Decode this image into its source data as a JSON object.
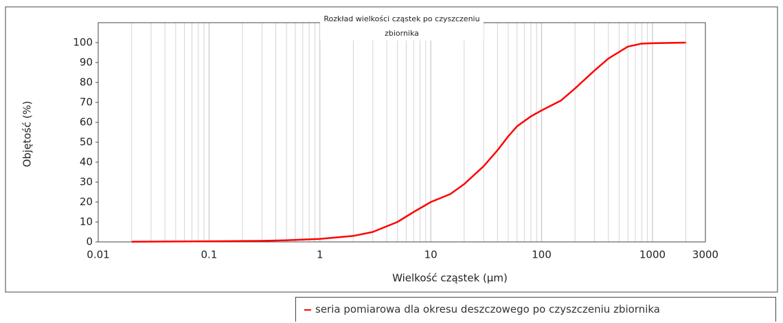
{
  "chart_data": {
    "type": "line",
    "title": "Rozkład wielkości cząstek po czyszczeniu zbiornika",
    "x_label": "Wielkość cząstek (µm)",
    "y_label": "Objętość (%)",
    "x_log": true,
    "xlim": [
      0.01,
      3000
    ],
    "xticks": [
      0.01,
      0.1,
      1,
      10,
      100,
      1000,
      3000
    ],
    "ylim": [
      0,
      110
    ],
    "yticks": [
      0,
      10,
      20,
      30,
      40,
      50,
      60,
      70,
      80,
      90,
      100
    ],
    "grid": true,
    "minor_grid": true,
    "legend": "bottom",
    "series": [
      {
        "name": "seria pomiarowa dla okresu deszczowego po czyszczeniu zbiornika",
        "color": "#ff0000",
        "x": [
          0.02,
          0.05,
          0.1,
          0.3,
          0.5,
          1,
          2,
          3,
          5,
          7,
          10,
          15,
          20,
          30,
          40,
          50,
          60,
          80,
          100,
          150,
          200,
          300,
          400,
          600,
          800,
          1000,
          2000
        ],
        "values": [
          0.1,
          0.2,
          0.3,
          0.5,
          0.8,
          1.5,
          3,
          5,
          10,
          15,
          20,
          24,
          29,
          38,
          46,
          53,
          58,
          63,
          66,
          71,
          77,
          86,
          92,
          98,
          99.5,
          99.7,
          100
        ]
      }
    ]
  }
}
